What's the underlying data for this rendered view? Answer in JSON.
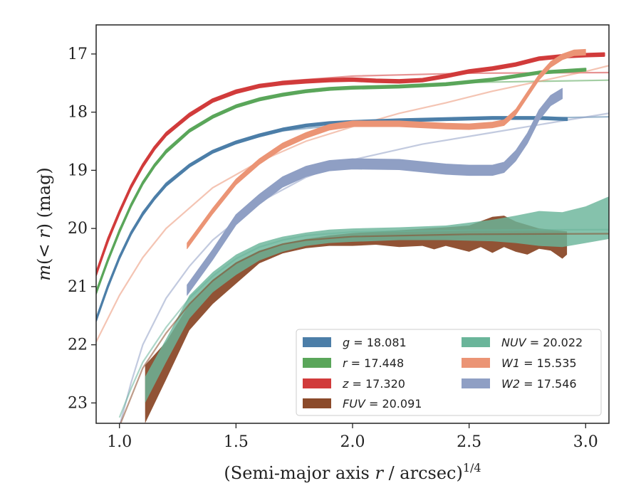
{
  "chart_data": {
    "type": "line",
    "x_label_text": "(Semi-major axis ",
    "x_label_var": "r",
    "x_label_unit": " / arcsec)",
    "x_label_exp": "1/4",
    "y_label_var1": "m",
    "y_label_mid": "(< ",
    "y_label_var2": "r",
    "y_label_end": ") (mag)",
    "xlim": [
      0.9,
      3.1
    ],
    "ylim": [
      23.35,
      16.5
    ],
    "y_inverted": true,
    "x_ticks": [
      1.0,
      1.5,
      2.0,
      2.5,
      3.0
    ],
    "x_tick_labels": [
      "1.0",
      "1.5",
      "2.0",
      "2.5",
      "3.0"
    ],
    "y_ticks": [
      17,
      18,
      19,
      20,
      21,
      22,
      23
    ],
    "y_tick_labels": [
      "17",
      "18",
      "19",
      "20",
      "21",
      "22",
      "23"
    ],
    "grid": false,
    "legend_position": "lower-right",
    "colors": {
      "g": "#4c7ea8",
      "r": "#5aa65a",
      "z": "#d13b3b",
      "FUV": "#8b4a2a",
      "NUV": "#6ab59a",
      "W1": "#eb9475",
      "W2": "#8f9fc4"
    },
    "series": [
      {
        "key": "g",
        "band": "g",
        "value": "18.081",
        "data": [
          [
            0.9,
            21.57
          ],
          [
            0.95,
            21.0
          ],
          [
            1.0,
            20.5
          ],
          [
            1.05,
            20.08
          ],
          [
            1.1,
            19.75
          ],
          [
            1.15,
            19.48
          ],
          [
            1.2,
            19.25
          ],
          [
            1.3,
            18.92
          ],
          [
            1.4,
            18.68
          ],
          [
            1.5,
            18.52
          ],
          [
            1.6,
            18.4
          ],
          [
            1.7,
            18.3
          ],
          [
            1.8,
            18.23
          ],
          [
            1.9,
            18.19
          ],
          [
            2.0,
            18.17
          ],
          [
            2.2,
            18.14
          ],
          [
            2.4,
            18.12
          ],
          [
            2.6,
            18.1
          ],
          [
            2.8,
            18.1
          ],
          [
            2.92,
            18.12
          ]
        ],
        "width": 0.04,
        "model": [
          [
            0.9,
            21.57
          ],
          [
            1.0,
            20.48
          ],
          [
            1.1,
            19.72
          ],
          [
            1.2,
            19.22
          ],
          [
            1.3,
            18.9
          ],
          [
            1.4,
            18.68
          ],
          [
            1.5,
            18.52
          ],
          [
            1.7,
            18.32
          ],
          [
            2.0,
            18.2
          ],
          [
            2.5,
            18.12
          ],
          [
            3.1,
            18.08
          ]
        ]
      },
      {
        "key": "r",
        "band": "r",
        "value": "17.448",
        "data": [
          [
            0.9,
            21.1
          ],
          [
            0.95,
            20.55
          ],
          [
            1.0,
            20.05
          ],
          [
            1.05,
            19.6
          ],
          [
            1.1,
            19.22
          ],
          [
            1.15,
            18.92
          ],
          [
            1.2,
            18.68
          ],
          [
            1.3,
            18.32
          ],
          [
            1.4,
            18.08
          ],
          [
            1.5,
            17.9
          ],
          [
            1.6,
            17.78
          ],
          [
            1.7,
            17.7
          ],
          [
            1.8,
            17.64
          ],
          [
            1.9,
            17.6
          ],
          [
            2.0,
            17.58
          ],
          [
            2.2,
            17.56
          ],
          [
            2.4,
            17.52
          ],
          [
            2.6,
            17.44
          ],
          [
            2.8,
            17.32
          ],
          [
            3.0,
            17.27
          ]
        ],
        "width": 0.04,
        "model": [
          [
            0.9,
            21.1
          ],
          [
            1.0,
            20.02
          ],
          [
            1.1,
            19.2
          ],
          [
            1.2,
            18.65
          ],
          [
            1.3,
            18.3
          ],
          [
            1.4,
            18.06
          ],
          [
            1.5,
            17.9
          ],
          [
            1.7,
            17.7
          ],
          [
            2.0,
            17.58
          ],
          [
            2.5,
            17.49
          ],
          [
            3.1,
            17.45
          ]
        ]
      },
      {
        "key": "z",
        "band": "z",
        "value": "17.320",
        "data": [
          [
            0.9,
            20.78
          ],
          [
            0.95,
            20.2
          ],
          [
            1.0,
            19.72
          ],
          [
            1.05,
            19.28
          ],
          [
            1.1,
            18.92
          ],
          [
            1.15,
            18.62
          ],
          [
            1.2,
            18.38
          ],
          [
            1.3,
            18.05
          ],
          [
            1.4,
            17.8
          ],
          [
            1.5,
            17.65
          ],
          [
            1.6,
            17.55
          ],
          [
            1.7,
            17.5
          ],
          [
            1.8,
            17.47
          ],
          [
            1.9,
            17.45
          ],
          [
            2.0,
            17.44
          ],
          [
            2.1,
            17.46
          ],
          [
            2.2,
            17.47
          ],
          [
            2.3,
            17.45
          ],
          [
            2.4,
            17.38
          ],
          [
            2.5,
            17.3
          ],
          [
            2.6,
            17.25
          ],
          [
            2.7,
            17.18
          ],
          [
            2.8,
            17.08
          ],
          [
            2.9,
            17.04
          ],
          [
            3.0,
            17.02
          ],
          [
            3.08,
            17.01
          ]
        ],
        "width": 0.05,
        "model": [
          [
            0.9,
            20.78
          ],
          [
            1.0,
            19.7
          ],
          [
            1.1,
            18.9
          ],
          [
            1.2,
            18.36
          ],
          [
            1.3,
            18.02
          ],
          [
            1.4,
            17.78
          ],
          [
            1.5,
            17.62
          ],
          [
            1.7,
            17.47
          ],
          [
            2.0,
            17.38
          ],
          [
            2.5,
            17.33
          ],
          [
            3.1,
            17.32
          ]
        ]
      },
      {
        "key": "W1",
        "band": "W1",
        "value": "15.535",
        "data": [
          [
            1.29,
            20.3
          ],
          [
            1.4,
            19.7
          ],
          [
            1.5,
            19.2
          ],
          [
            1.6,
            18.85
          ],
          [
            1.7,
            18.58
          ],
          [
            1.8,
            18.4
          ],
          [
            1.9,
            18.26
          ],
          [
            2.0,
            18.2
          ],
          [
            2.1,
            18.2
          ],
          [
            2.2,
            18.2
          ],
          [
            2.3,
            18.22
          ],
          [
            2.4,
            18.24
          ],
          [
            2.5,
            18.25
          ],
          [
            2.6,
            18.22
          ],
          [
            2.65,
            18.18
          ],
          [
            2.7,
            18.0
          ],
          [
            2.75,
            17.7
          ],
          [
            2.8,
            17.4
          ],
          [
            2.85,
            17.18
          ],
          [
            2.9,
            17.05
          ],
          [
            2.95,
            16.98
          ],
          [
            3.0,
            16.97
          ]
        ],
        "width": 0.1,
        "model": [
          [
            0.9,
            21.95
          ],
          [
            1.0,
            21.15
          ],
          [
            1.1,
            20.5
          ],
          [
            1.2,
            20.0
          ],
          [
            1.4,
            19.3
          ],
          [
            1.6,
            18.85
          ],
          [
            1.8,
            18.5
          ],
          [
            2.0,
            18.25
          ],
          [
            2.2,
            18.02
          ],
          [
            2.4,
            17.84
          ],
          [
            2.6,
            17.64
          ],
          [
            2.8,
            17.47
          ],
          [
            3.0,
            17.3
          ],
          [
            3.1,
            17.2
          ]
        ]
      },
      {
        "key": "W2",
        "band": "W2",
        "value": "17.546",
        "data": [
          [
            1.29,
            21.06
          ],
          [
            1.4,
            20.45
          ],
          [
            1.5,
            19.85
          ],
          [
            1.6,
            19.5
          ],
          [
            1.7,
            19.2
          ],
          [
            1.8,
            19.02
          ],
          [
            1.9,
            18.92
          ],
          [
            2.0,
            18.89
          ],
          [
            2.2,
            18.9
          ],
          [
            2.4,
            18.98
          ],
          [
            2.5,
            19.0
          ],
          [
            2.6,
            19.0
          ],
          [
            2.65,
            18.95
          ],
          [
            2.7,
            18.75
          ],
          [
            2.75,
            18.45
          ],
          [
            2.8,
            18.05
          ],
          [
            2.85,
            17.8
          ],
          [
            2.9,
            17.68
          ]
        ],
        "width": 0.18,
        "model": [
          [
            1.0,
            23.4
          ],
          [
            1.05,
            22.65
          ],
          [
            1.1,
            22.0
          ],
          [
            1.2,
            21.2
          ],
          [
            1.3,
            20.65
          ],
          [
            1.4,
            20.2
          ],
          [
            1.6,
            19.55
          ],
          [
            1.8,
            19.12
          ],
          [
            2.0,
            18.82
          ],
          [
            2.3,
            18.55
          ],
          [
            2.6,
            18.35
          ],
          [
            2.9,
            18.15
          ],
          [
            3.1,
            18.02
          ]
        ]
      },
      {
        "key": "FUV",
        "band": "FUV",
        "value": "20.091",
        "upper": [
          [
            1.11,
            22.35
          ],
          [
            1.2,
            21.95
          ],
          [
            1.3,
            21.3
          ],
          [
            1.4,
            20.88
          ],
          [
            1.5,
            20.58
          ],
          [
            1.6,
            20.38
          ],
          [
            1.7,
            20.26
          ],
          [
            1.8,
            20.18
          ],
          [
            1.9,
            20.12
          ],
          [
            2.0,
            20.08
          ],
          [
            2.2,
            20.03
          ],
          [
            2.4,
            19.98
          ],
          [
            2.5,
            19.95
          ],
          [
            2.6,
            19.8
          ],
          [
            2.65,
            19.78
          ],
          [
            2.7,
            19.88
          ],
          [
            2.8,
            20.0
          ],
          [
            2.92,
            20.05
          ]
        ],
        "lower": [
          [
            1.11,
            23.35
          ],
          [
            1.2,
            22.6
          ],
          [
            1.3,
            21.75
          ],
          [
            1.4,
            21.3
          ],
          [
            1.5,
            20.95
          ],
          [
            1.6,
            20.6
          ],
          [
            1.7,
            20.43
          ],
          [
            1.8,
            20.34
          ],
          [
            1.9,
            20.3
          ],
          [
            2.0,
            20.3
          ],
          [
            2.1,
            20.28
          ],
          [
            2.2,
            20.32
          ],
          [
            2.3,
            20.3
          ],
          [
            2.35,
            20.36
          ],
          [
            2.4,
            20.3
          ],
          [
            2.5,
            20.4
          ],
          [
            2.55,
            20.32
          ],
          [
            2.6,
            20.42
          ],
          [
            2.65,
            20.32
          ],
          [
            2.7,
            20.4
          ],
          [
            2.75,
            20.45
          ],
          [
            2.8,
            20.35
          ],
          [
            2.85,
            20.38
          ],
          [
            2.9,
            20.52
          ],
          [
            2.92,
            20.45
          ]
        ],
        "model": [
          [
            1.0,
            23.4
          ],
          [
            1.05,
            22.9
          ],
          [
            1.1,
            22.4
          ],
          [
            1.2,
            21.8
          ],
          [
            1.3,
            21.3
          ],
          [
            1.4,
            20.9
          ],
          [
            1.5,
            20.6
          ],
          [
            1.6,
            20.4
          ],
          [
            1.7,
            20.27
          ],
          [
            1.8,
            20.2
          ],
          [
            2.0,
            20.14
          ],
          [
            2.5,
            20.1
          ],
          [
            3.1,
            20.09
          ]
        ]
      },
      {
        "key": "NUV",
        "band": "NUV",
        "value": "20.022",
        "upper": [
          [
            1.11,
            22.55
          ],
          [
            1.2,
            21.9
          ],
          [
            1.3,
            21.15
          ],
          [
            1.4,
            20.75
          ],
          [
            1.5,
            20.45
          ],
          [
            1.6,
            20.25
          ],
          [
            1.7,
            20.14
          ],
          [
            1.8,
            20.07
          ],
          [
            1.9,
            20.02
          ],
          [
            2.0,
            20.0
          ],
          [
            2.2,
            19.98
          ],
          [
            2.4,
            19.95
          ],
          [
            2.6,
            19.85
          ],
          [
            2.7,
            19.78
          ],
          [
            2.8,
            19.7
          ],
          [
            2.9,
            19.72
          ],
          [
            3.0,
            19.62
          ],
          [
            3.1,
            19.45
          ]
        ],
        "lower": [
          [
            1.11,
            23.0
          ],
          [
            1.2,
            22.3
          ],
          [
            1.3,
            21.55
          ],
          [
            1.4,
            21.1
          ],
          [
            1.5,
            20.8
          ],
          [
            1.6,
            20.55
          ],
          [
            1.7,
            20.4
          ],
          [
            1.8,
            20.3
          ],
          [
            1.9,
            20.25
          ],
          [
            2.0,
            20.23
          ],
          [
            2.2,
            20.2
          ],
          [
            2.4,
            20.2
          ],
          [
            2.6,
            20.22
          ],
          [
            2.7,
            20.25
          ],
          [
            2.8,
            20.3
          ],
          [
            2.9,
            20.32
          ],
          [
            3.0,
            20.25
          ],
          [
            3.1,
            20.18
          ]
        ],
        "model": [
          [
            1.0,
            23.25
          ],
          [
            1.05,
            22.75
          ],
          [
            1.1,
            22.3
          ],
          [
            1.2,
            21.7
          ],
          [
            1.3,
            21.2
          ],
          [
            1.4,
            20.82
          ],
          [
            1.5,
            20.52
          ],
          [
            1.6,
            20.32
          ],
          [
            1.7,
            20.2
          ],
          [
            1.8,
            20.12
          ],
          [
            2.0,
            20.06
          ],
          [
            2.5,
            20.03
          ],
          [
            3.1,
            20.02
          ]
        ]
      }
    ],
    "legend": [
      {
        "key": "g",
        "var": "g",
        "eq": " = 18.081"
      },
      {
        "key": "r",
        "var": "r",
        "eq": " = 17.448"
      },
      {
        "key": "z",
        "var": "z",
        "eq": " = 17.320"
      },
      {
        "key": "FUV",
        "var": "FUV",
        "eq": " = 20.091"
      },
      {
        "key": "NUV",
        "var": "NUV",
        "eq": " = 20.022"
      },
      {
        "key": "W1",
        "var": "W1",
        "eq": " = 15.535"
      },
      {
        "key": "W2",
        "var": "W2",
        "eq": " = 17.546"
      }
    ]
  }
}
